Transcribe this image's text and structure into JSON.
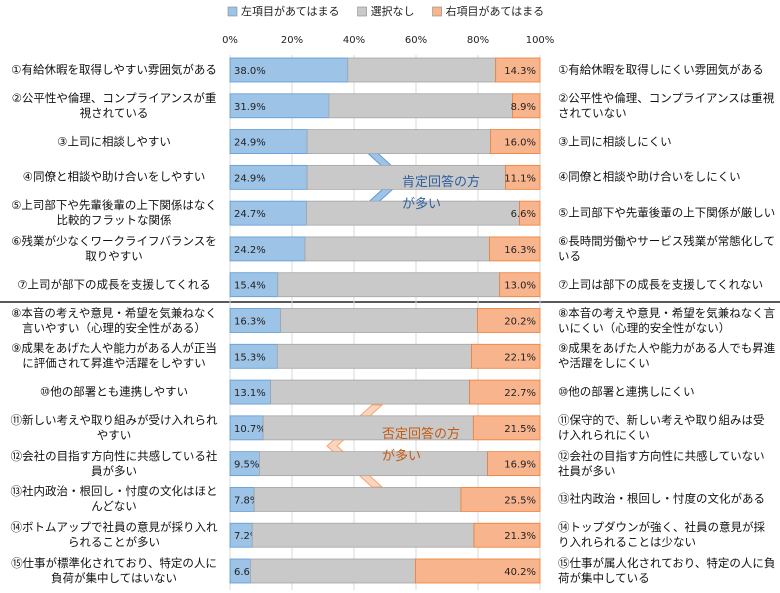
{
  "chart_data": {
    "type": "stacked_bar_100",
    "categories": [
      "①有給休暇を取得しやすい雰囲気がある",
      "②公平性や倫理、コンプライアンスが重視されている",
      "③上司に相談しやすい",
      "④同僚と相談や助け合いをしやすい",
      "⑤上司部下や先輩後輩の上下関係はなく比較的フラットな関係",
      "⑥残業が少なくワークライフバランスを取りやすい",
      "⑦上司が部下の成長を支援してくれる",
      "⑧本音の考えや意見・希望を気兼ねなく言いやすい（心理的安全性がある）",
      "⑨成果をあげた人や能力がある人が正当に評価されて昇進や活躍をしやすい",
      "⑩他の部署とも連携しやすい",
      "⑪新しい考えや取り組みが受け入れられやすい",
      "⑫会社の目指す方向性に共感している社員が多い",
      "⑬社内政治・根回し・忖度の文化はほとんどない",
      "⑭ボトムアップで社員の意見が採り入れられることが多い",
      "⑮仕事が標準化されており、特定の人に負荷が集中してはいない"
    ],
    "right_categories": [
      "①有給休暇を取得しにくい雰囲気がある",
      "②公平性や倫理、コンプライアンスは重視されていない",
      "③上司に相談しにくい",
      "④同僚と相談や助け合いをしにくい",
      "⑤上司部下や先輩後輩の上下関係が厳しい",
      "⑥長時間労働やサービス残業が常態化している",
      "⑦上司は部下の成長を支援してくれない",
      "⑧本音の考えや意見・希望を気兼ねなく言いにくい（心理的安全性がない）",
      "⑨成果をあげた人や能力がある人でも昇進や活躍をしにくい",
      "⑩他の部署と連携しにくい",
      "⑪保守的で、新しい考えや取り組みは受け入れられにくい",
      "⑫会社の目指す方向性に共感していない社員が多い",
      "⑬社内政治・根回し・忖度の文化がある",
      "⑭トップダウンが強く、社員の意見が採り入れられることは少ない",
      "⑮仕事が属人化されており、特定の人に負荷が集中している"
    ],
    "series": [
      {
        "name": "左項目があてはまる",
        "color": "#9dc3e6",
        "values": [
          38.0,
          31.9,
          24.9,
          24.9,
          24.7,
          24.2,
          15.4,
          16.3,
          15.3,
          13.1,
          10.7,
          9.5,
          7.8,
          7.2,
          6.6
        ],
        "value_labels": [
          "38.0%",
          "31.9%",
          "24.9%",
          "24.9%",
          "24.7%",
          "24.2%",
          "15.4%",
          "16.3%",
          "15.3%",
          "13.1%",
          "10.7%",
          "9.5%",
          "7.8%",
          "7.2%",
          "6.6%"
        ]
      },
      {
        "name": "選択なし",
        "color": "#c9c9c9",
        "values": [
          47.7,
          59.2,
          59.1,
          64.0,
          68.7,
          59.5,
          71.6,
          63.5,
          62.6,
          64.2,
          67.8,
          73.6,
          66.7,
          71.5,
          53.2
        ]
      },
      {
        "name": "右項目があてはまる",
        "color": "#f8b58d",
        "values": [
          14.3,
          8.9,
          16.0,
          11.1,
          6.6,
          16.3,
          13.0,
          20.2,
          22.1,
          22.7,
          21.5,
          16.9,
          25.5,
          21.3,
          40.2
        ],
        "value_labels": [
          "14.3%",
          "8.9%",
          "16.0%",
          "11.1%",
          "6.6%",
          "16.3%",
          "13.0%",
          "20.2%",
          "22.1%",
          "22.7%",
          "21.5%",
          "16.9%",
          "25.5%",
          "21.3%",
          "40.2%"
        ]
      }
    ],
    "xlim": [
      0,
      100
    ],
    "xticks": [
      {
        "value": 0,
        "label": "0%"
      },
      {
        "value": 20,
        "label": "20%"
      },
      {
        "value": 40,
        "label": "40%"
      },
      {
        "value": 60,
        "label": "60%"
      },
      {
        "value": 80,
        "label": "80%"
      },
      {
        "value": 100,
        "label": "100%"
      }
    ],
    "grid": true,
    "legend": "top",
    "annotations": [
      "肯定回答の方が多い",
      "否定回答の方が多い"
    ]
  }
}
